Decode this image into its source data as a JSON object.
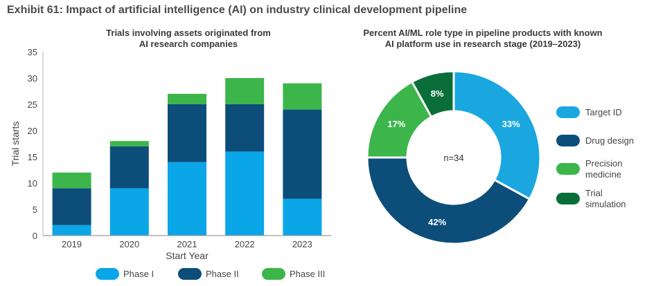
{
  "exhibit_title": "Exhibit 61: Impact of artificial intelligence (AI) on industry clinical development pipeline",
  "colors": {
    "phase1": "#0aa6e8",
    "phase2": "#0c4d7a",
    "phase3": "#3cb54a",
    "target_id": "#1aa7e0",
    "drug_design": "#0c4d7a",
    "precision_medicine": "#3cb54a",
    "trial_simulation": "#0a6e3b",
    "axis_text": "#444444"
  },
  "chart_data": [
    {
      "type": "bar",
      "stacked": true,
      "title_lines": [
        "Trials involving assets originated from",
        "AI research companies"
      ],
      "categories": [
        "2019",
        "2020",
        "2021",
        "2022",
        "2023"
      ],
      "series": [
        {
          "name": "Phase I",
          "values": [
            2,
            9,
            14,
            16,
            7
          ]
        },
        {
          "name": "Phase II",
          "values": [
            7,
            8,
            11,
            9,
            17
          ]
        },
        {
          "name": "Phase III",
          "values": [
            3,
            1,
            2,
            5,
            5
          ]
        }
      ],
      "xlabel": "Start Year",
      "ylabel": "Trial starts",
      "ylim": [
        0,
        35
      ],
      "yticks": [
        "0",
        "5",
        "10",
        "15",
        "20",
        "25",
        "30",
        "35"
      ],
      "legend_position": "bottom"
    },
    {
      "type": "pie",
      "donut": true,
      "title_lines": [
        "Percent AI/ML role type in pipeline products with known",
        "AI platform use in research stage (2019–2023)"
      ],
      "center_label": "n=34",
      "slices": [
        {
          "name": "Target ID",
          "value": 33,
          "label": "33%"
        },
        {
          "name": "Drug design",
          "value": 42,
          "label": "42%"
        },
        {
          "name": "Precision medicine",
          "value": 17,
          "label": "17%"
        },
        {
          "name": "Trial simulation",
          "value": 8,
          "label": "8%"
        }
      ],
      "legend": [
        {
          "lines": [
            "Target ID"
          ]
        },
        {
          "lines": [
            "Drug design"
          ]
        },
        {
          "lines": [
            "Precision",
            "medicine"
          ]
        },
        {
          "lines": [
            "Trial",
            "simulation"
          ]
        }
      ],
      "legend_position": "right"
    }
  ]
}
